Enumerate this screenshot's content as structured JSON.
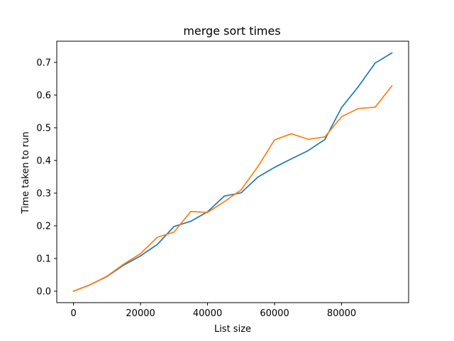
{
  "chart_data": {
    "type": "line",
    "title": "merge sort times",
    "xlabel": "List size",
    "ylabel": "Time taken to run",
    "xlim": [
      -5000,
      100000
    ],
    "ylim": [
      -0.035,
      0.765
    ],
    "xticks": [
      0,
      20000,
      40000,
      60000,
      80000
    ],
    "xtick_labels": [
      "0",
      "20000",
      "40000",
      "60000",
      "80000"
    ],
    "yticks": [
      0.0,
      0.1,
      0.2,
      0.3,
      0.4,
      0.5,
      0.6,
      0.7
    ],
    "ytick_labels": [
      "0.0",
      "0.1",
      "0.2",
      "0.3",
      "0.4",
      "0.5",
      "0.6",
      "0.7"
    ],
    "grid": false,
    "x": [
      0,
      5000,
      10000,
      15000,
      20000,
      25000,
      30000,
      35000,
      40000,
      45000,
      50000,
      55000,
      60000,
      65000,
      70000,
      75000,
      80000,
      85000,
      90000,
      95000
    ],
    "series": [
      {
        "color": "#1f77b4",
        "values": [
          0.0,
          0.02,
          0.045,
          0.08,
          0.108,
          0.143,
          0.198,
          0.214,
          0.243,
          0.291,
          0.301,
          0.349,
          0.379,
          0.405,
          0.43,
          0.464,
          0.562,
          0.626,
          0.698,
          0.729
        ]
      },
      {
        "color": "#ff7f0e",
        "values": [
          0.0,
          0.02,
          0.046,
          0.083,
          0.115,
          0.165,
          0.181,
          0.244,
          0.241,
          0.274,
          0.31,
          0.381,
          0.463,
          0.482,
          0.465,
          0.472,
          0.534,
          0.559,
          0.563,
          0.628
        ]
      }
    ]
  }
}
